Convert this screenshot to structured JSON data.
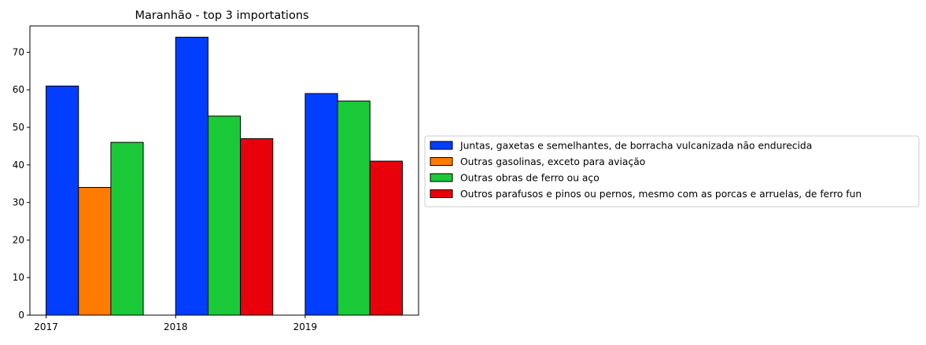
{
  "chart_data": {
    "type": "bar",
    "title": "Maranhão - top 3 importations",
    "categories": [
      "2017",
      "2018",
      "2019"
    ],
    "xlabel": "",
    "ylabel": "",
    "ylim": [
      0,
      77
    ],
    "yticks": [
      0,
      10,
      20,
      30,
      40,
      50,
      60,
      70
    ],
    "grid": false,
    "legend_position": "right",
    "series": [
      {
        "name": "Juntas, gaxetas e semelhantes, de borracha vulcanizada não endurecida",
        "color": "#023eff",
        "values": [
          61,
          74,
          59
        ]
      },
      {
        "name": "Outras gasolinas, exceto para aviação",
        "color": "#ff7c00",
        "values": [
          34,
          null,
          null
        ]
      },
      {
        "name": "Outras obras de ferro ou aço",
        "color": "#1ac938",
        "values": [
          46,
          53,
          57
        ]
      },
      {
        "name": "Outros parafusos e pinos ou pernos, mesmo com as porcas e arruelas, de ferro fun",
        "color": "#e8000b",
        "values": [
          null,
          47,
          41
        ]
      }
    ]
  }
}
